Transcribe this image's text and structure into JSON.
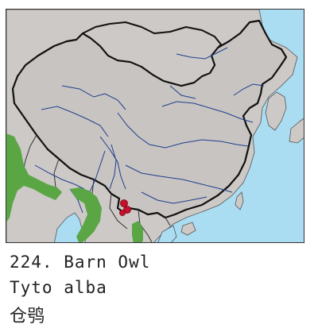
{
  "map": {
    "colors": {
      "sea": "#aadcf2",
      "land": "#cdc9c7",
      "china": "#c8c4c1",
      "range": "#5aa645",
      "record": "#c8102e",
      "border": "#111111",
      "river": "#1f3f8f"
    }
  },
  "caption": {
    "number_and_name": "224. Barn Owl",
    "scientific_name": "Tyto alba",
    "chinese_name": "仓鸮"
  }
}
